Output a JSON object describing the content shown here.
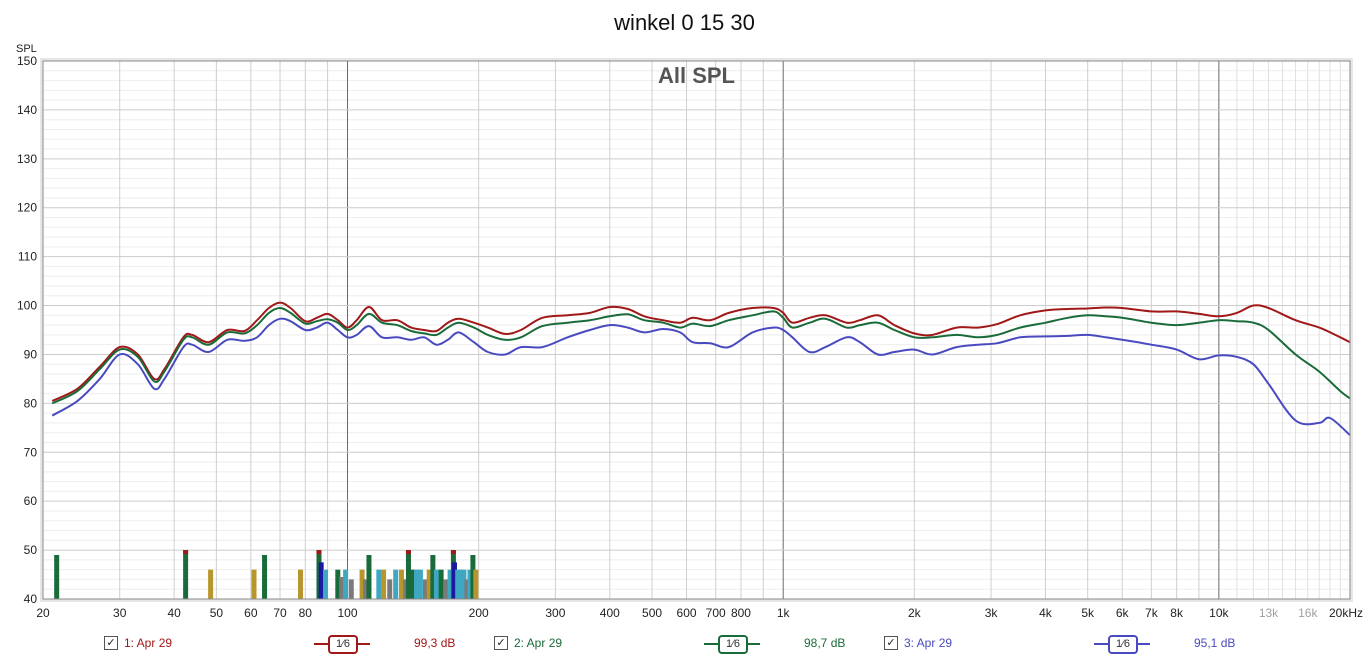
{
  "title": "winkel 0 15 30",
  "chart_data": {
    "type": "line",
    "title": "winkel 0 15 30",
    "inner_label": "All SPL",
    "ylabel": "SPL",
    "xscale": "log",
    "xlim": [
      20,
      20000
    ],
    "ylim": [
      40,
      150
    ],
    "yticks": [
      40,
      50,
      60,
      70,
      80,
      90,
      100,
      110,
      120,
      130,
      140,
      150
    ],
    "xticks": [
      {
        "v": 20,
        "label": "20"
      },
      {
        "v": 30,
        "label": "30"
      },
      {
        "v": 40,
        "label": "40"
      },
      {
        "v": 50,
        "label": "50"
      },
      {
        "v": 60,
        "label": "60"
      },
      {
        "v": 70,
        "label": "70"
      },
      {
        "v": 80,
        "label": "80"
      },
      {
        "v": 100,
        "label": "100"
      },
      {
        "v": 200,
        "label": "200"
      },
      {
        "v": 300,
        "label": "300"
      },
      {
        "v": 400,
        "label": "400"
      },
      {
        "v": 500,
        "label": "500"
      },
      {
        "v": 600,
        "label": "600"
      },
      {
        "v": 700,
        "label": "700"
      },
      {
        "v": 800,
        "label": "800"
      },
      {
        "v": 1000,
        "label": "1k"
      },
      {
        "v": 2000,
        "label": "2k"
      },
      {
        "v": 3000,
        "label": "3k"
      },
      {
        "v": 4000,
        "label": "4k"
      },
      {
        "v": 5000,
        "label": "5k"
      },
      {
        "v": 6000,
        "label": "6k"
      },
      {
        "v": 7000,
        "label": "7k"
      },
      {
        "v": 8000,
        "label": "8k"
      },
      {
        "v": 10000,
        "label": "10k"
      },
      {
        "v": 13000,
        "label": "13k",
        "dim": true
      },
      {
        "v": 16000,
        "label": "16k",
        "dim": true
      },
      {
        "v": 20000,
        "label": "20kHz"
      }
    ],
    "grid": true,
    "series": [
      {
        "name": "1: Apr 29",
        "color": "#a01818",
        "points": [
          [
            21,
            80.5
          ],
          [
            24,
            83
          ],
          [
            27,
            87.5
          ],
          [
            30,
            91.5
          ],
          [
            33,
            90
          ],
          [
            36,
            85
          ],
          [
            38,
            87
          ],
          [
            42,
            93.5
          ],
          [
            44,
            94
          ],
          [
            48,
            92.5
          ],
          [
            53,
            95
          ],
          [
            58,
            94.8
          ],
          [
            62,
            97
          ],
          [
            66,
            99.5
          ],
          [
            70,
            100.6
          ],
          [
            74,
            99.5
          ],
          [
            80,
            96.8
          ],
          [
            85,
            97.5
          ],
          [
            90,
            98.3
          ],
          [
            95,
            97
          ],
          [
            100,
            95.5
          ],
          [
            105,
            97
          ],
          [
            112,
            99.7
          ],
          [
            120,
            97
          ],
          [
            130,
            97
          ],
          [
            140,
            95.5
          ],
          [
            150,
            95
          ],
          [
            160,
            94.8
          ],
          [
            170,
            96.5
          ],
          [
            180,
            97.3
          ],
          [
            195,
            96.5
          ],
          [
            210,
            95.5
          ],
          [
            230,
            94.2
          ],
          [
            250,
            95
          ],
          [
            280,
            97.5
          ],
          [
            320,
            98
          ],
          [
            360,
            98.5
          ],
          [
            400,
            99.7
          ],
          [
            440,
            99.3
          ],
          [
            480,
            97.8
          ],
          [
            530,
            97
          ],
          [
            580,
            96.5
          ],
          [
            620,
            97.5
          ],
          [
            680,
            97
          ],
          [
            750,
            98.5
          ],
          [
            850,
            99.5
          ],
          [
            950,
            99.5
          ],
          [
            1000,
            98.5
          ],
          [
            1050,
            96.5
          ],
          [
            1150,
            97.5
          ],
          [
            1250,
            98
          ],
          [
            1400,
            96.5
          ],
          [
            1500,
            97
          ],
          [
            1650,
            98
          ],
          [
            1800,
            96
          ],
          [
            2000,
            94.3
          ],
          [
            2200,
            94
          ],
          [
            2500,
            95.5
          ],
          [
            2800,
            95.5
          ],
          [
            3100,
            96.2
          ],
          [
            3500,
            98
          ],
          [
            4000,
            99
          ],
          [
            4500,
            99.3
          ],
          [
            5000,
            99.4
          ],
          [
            5500,
            99.6
          ],
          [
            6000,
            99.5
          ],
          [
            7000,
            98.8
          ],
          [
            8000,
            98.8
          ],
          [
            9000,
            98.3
          ],
          [
            10000,
            97.8
          ],
          [
            11000,
            98.5
          ],
          [
            12000,
            100
          ],
          [
            13000,
            99.5
          ],
          [
            15000,
            97
          ],
          [
            17000,
            95.5
          ],
          [
            19000,
            93.5
          ],
          [
            20000,
            92.5
          ]
        ]
      },
      {
        "name": "2: Apr 29",
        "color": "#1a6b3a",
        "points": [
          [
            21,
            80
          ],
          [
            24,
            82.5
          ],
          [
            27,
            87
          ],
          [
            30,
            91
          ],
          [
            33,
            89.5
          ],
          [
            36,
            84.5
          ],
          [
            38,
            86.5
          ],
          [
            42,
            93
          ],
          [
            44,
            93.5
          ],
          [
            48,
            92
          ],
          [
            53,
            94.5
          ],
          [
            58,
            94.3
          ],
          [
            62,
            96
          ],
          [
            66,
            98.5
          ],
          [
            70,
            99.5
          ],
          [
            74,
            98.5
          ],
          [
            80,
            96.3
          ],
          [
            85,
            96.8
          ],
          [
            90,
            97.2
          ],
          [
            95,
            96.5
          ],
          [
            100,
            95
          ],
          [
            105,
            96
          ],
          [
            112,
            98.3
          ],
          [
            120,
            96.5
          ],
          [
            130,
            96
          ],
          [
            140,
            94.8
          ],
          [
            150,
            94.3
          ],
          [
            160,
            94
          ],
          [
            170,
            95.5
          ],
          [
            180,
            96.5
          ],
          [
            195,
            95.5
          ],
          [
            210,
            94
          ],
          [
            230,
            93
          ],
          [
            250,
            93.5
          ],
          [
            280,
            95.8
          ],
          [
            320,
            96.5
          ],
          [
            360,
            97
          ],
          [
            400,
            97.8
          ],
          [
            440,
            98.2
          ],
          [
            480,
            97
          ],
          [
            530,
            96.5
          ],
          [
            580,
            95.5
          ],
          [
            620,
            96.3
          ],
          [
            680,
            95.8
          ],
          [
            750,
            97
          ],
          [
            850,
            98
          ],
          [
            950,
            98.8
          ],
          [
            1000,
            97.5
          ],
          [
            1050,
            95.5
          ],
          [
            1150,
            96.5
          ],
          [
            1250,
            97.3
          ],
          [
            1400,
            95.5
          ],
          [
            1500,
            96
          ],
          [
            1650,
            96.5
          ],
          [
            1800,
            95
          ],
          [
            2000,
            93.5
          ],
          [
            2200,
            93.5
          ],
          [
            2500,
            94
          ],
          [
            2800,
            93.5
          ],
          [
            3100,
            94
          ],
          [
            3500,
            95.5
          ],
          [
            4000,
            96.5
          ],
          [
            4500,
            97.5
          ],
          [
            5000,
            98
          ],
          [
            5500,
            97.8
          ],
          [
            6000,
            97.5
          ],
          [
            7000,
            96.5
          ],
          [
            8000,
            96
          ],
          [
            9000,
            96.5
          ],
          [
            10000,
            97
          ],
          [
            11000,
            96.8
          ],
          [
            12000,
            96.5
          ],
          [
            13000,
            95
          ],
          [
            15000,
            90
          ],
          [
            17000,
            86.5
          ],
          [
            19000,
            82.5
          ],
          [
            20000,
            81
          ]
        ]
      },
      {
        "name": "3: Apr 29",
        "color": "#4a4ac0",
        "points": [
          [
            21,
            77.5
          ],
          [
            24,
            80.5
          ],
          [
            27,
            85
          ],
          [
            30,
            90
          ],
          [
            33,
            88
          ],
          [
            36,
            83
          ],
          [
            38,
            85
          ],
          [
            42,
            91.5
          ],
          [
            44,
            92
          ],
          [
            48,
            90.5
          ],
          [
            53,
            93
          ],
          [
            58,
            92.8
          ],
          [
            62,
            93.5
          ],
          [
            66,
            96
          ],
          [
            70,
            97.3
          ],
          [
            74,
            96.8
          ],
          [
            80,
            95
          ],
          [
            85,
            95.5
          ],
          [
            90,
            96.5
          ],
          [
            95,
            95
          ],
          [
            100,
            93.5
          ],
          [
            105,
            94
          ],
          [
            112,
            95.8
          ],
          [
            120,
            93.5
          ],
          [
            130,
            93.5
          ],
          [
            140,
            93
          ],
          [
            150,
            93.5
          ],
          [
            160,
            92
          ],
          [
            170,
            93
          ],
          [
            180,
            94.5
          ],
          [
            195,
            92.5
          ],
          [
            210,
            90.5
          ],
          [
            230,
            90
          ],
          [
            250,
            91.5
          ],
          [
            280,
            91.5
          ],
          [
            320,
            93.5
          ],
          [
            360,
            95
          ],
          [
            400,
            96
          ],
          [
            440,
            95.5
          ],
          [
            480,
            94.5
          ],
          [
            530,
            95.2
          ],
          [
            580,
            94.5
          ],
          [
            620,
            92.5
          ],
          [
            680,
            92.3
          ],
          [
            750,
            91.5
          ],
          [
            850,
            94.5
          ],
          [
            950,
            95.5
          ],
          [
            1000,
            95
          ],
          [
            1050,
            93.5
          ],
          [
            1150,
            90.5
          ],
          [
            1250,
            91.5
          ],
          [
            1400,
            93.5
          ],
          [
            1500,
            92.5
          ],
          [
            1650,
            90
          ],
          [
            1800,
            90.5
          ],
          [
            2000,
            91
          ],
          [
            2200,
            90
          ],
          [
            2500,
            91.5
          ],
          [
            2800,
            92
          ],
          [
            3100,
            92.3
          ],
          [
            3500,
            93.5
          ],
          [
            4000,
            93.7
          ],
          [
            4500,
            93.8
          ],
          [
            5000,
            94
          ],
          [
            5500,
            93.5
          ],
          [
            6000,
            93
          ],
          [
            7000,
            92
          ],
          [
            8000,
            91
          ],
          [
            9000,
            89
          ],
          [
            10000,
            89.8
          ],
          [
            11000,
            89.5
          ],
          [
            12000,
            88
          ],
          [
            13000,
            84
          ],
          [
            15000,
            76.5
          ],
          [
            17000,
            76
          ],
          [
            18000,
            77
          ],
          [
            20000,
            73.5
          ]
        ]
      }
    ],
    "markers": [
      {
        "f": 21.5,
        "top": 49,
        "c": "#1a6b3a"
      },
      {
        "f": 42.5,
        "top": 50,
        "c": "#1a6b3a",
        "cap": "#a01818"
      },
      {
        "f": 48.5,
        "top": 46,
        "c": "#b8962e"
      },
      {
        "f": 61,
        "top": 46,
        "c": "#b8962e"
      },
      {
        "f": 64.5,
        "top": 49,
        "c": "#1a6b3a"
      },
      {
        "f": 78,
        "top": 46,
        "c": "#b8962e"
      },
      {
        "f": 86,
        "top": 50,
        "c": "#1a6b3a",
        "cap": "#a01818"
      },
      {
        "f": 87,
        "top": 47.5,
        "c": "#1a1aa0"
      },
      {
        "f": 89,
        "top": 46,
        "c": "#3fa7c2"
      },
      {
        "f": 95,
        "top": 46,
        "c": "#1a6b3a"
      },
      {
        "f": 97,
        "top": 44.5,
        "c": "#7a7a7a"
      },
      {
        "f": 99,
        "top": 46,
        "c": "#3fa7c2"
      },
      {
        "f": 102,
        "top": 44,
        "c": "#7a7a7a"
      },
      {
        "f": 108,
        "top": 46,
        "c": "#b8962e"
      },
      {
        "f": 110,
        "top": 44,
        "c": "#7a7a7a"
      },
      {
        "f": 112,
        "top": 49,
        "c": "#1a6b3a"
      },
      {
        "f": 118,
        "top": 46,
        "c": "#3fa7c2"
      },
      {
        "f": 121,
        "top": 46,
        "c": "#b8962e"
      },
      {
        "f": 125,
        "top": 44,
        "c": "#7a7a7a"
      },
      {
        "f": 129,
        "top": 46,
        "c": "#3fa7c2"
      },
      {
        "f": 133,
        "top": 46,
        "c": "#b8962e"
      },
      {
        "f": 136,
        "top": 44,
        "c": "#7a7a7a"
      },
      {
        "f": 138,
        "top": 50,
        "c": "#1a6b3a",
        "cap": "#a01818"
      },
      {
        "f": 141,
        "top": 46,
        "c": "#1a6b3a"
      },
      {
        "f": 144,
        "top": 46,
        "c": "#3fa7c2"
      },
      {
        "f": 147,
        "top": 46,
        "c": "#3fa7c2"
      },
      {
        "f": 151,
        "top": 44,
        "c": "#7a7a7a"
      },
      {
        "f": 154,
        "top": 46,
        "c": "#b8962e"
      },
      {
        "f": 157,
        "top": 49,
        "c": "#1a6b3a"
      },
      {
        "f": 160,
        "top": 46,
        "c": "#3fa7c2"
      },
      {
        "f": 164,
        "top": 46,
        "c": "#1a6b3a"
      },
      {
        "f": 168,
        "top": 44,
        "c": "#7a7a7a"
      },
      {
        "f": 172,
        "top": 46,
        "c": "#3fa7c2"
      },
      {
        "f": 175,
        "top": 50,
        "c": "#1a6b3a",
        "cap": "#a01818"
      },
      {
        "f": 176,
        "top": 47.5,
        "c": "#1a1aa0"
      },
      {
        "f": 179,
        "top": 46,
        "c": "#3fa7c2"
      },
      {
        "f": 182,
        "top": 46,
        "c": "#3fa7c2"
      },
      {
        "f": 185,
        "top": 46,
        "c": "#3fa7c2"
      },
      {
        "f": 188,
        "top": 44,
        "c": "#7a7a7a"
      },
      {
        "f": 191,
        "top": 46,
        "c": "#3fa7c2"
      },
      {
        "f": 194,
        "top": 49,
        "c": "#1a6b3a"
      },
      {
        "f": 197,
        "top": 46,
        "c": "#b8962e"
      }
    ]
  },
  "legend": [
    {
      "checked": "✓",
      "label": "1: Apr 29",
      "smoothing": "1⁄6",
      "level": "99,3 dB",
      "color": "#a01818"
    },
    {
      "checked": "✓",
      "label": "2: Apr 29",
      "smoothing": "1⁄6",
      "level": "98,7 dB",
      "color": "#1a6b3a"
    },
    {
      "checked": "✓",
      "label": "3: Apr 29",
      "smoothing": "1⁄6",
      "level": "95,1 dB",
      "color": "#4a4ac0"
    }
  ]
}
